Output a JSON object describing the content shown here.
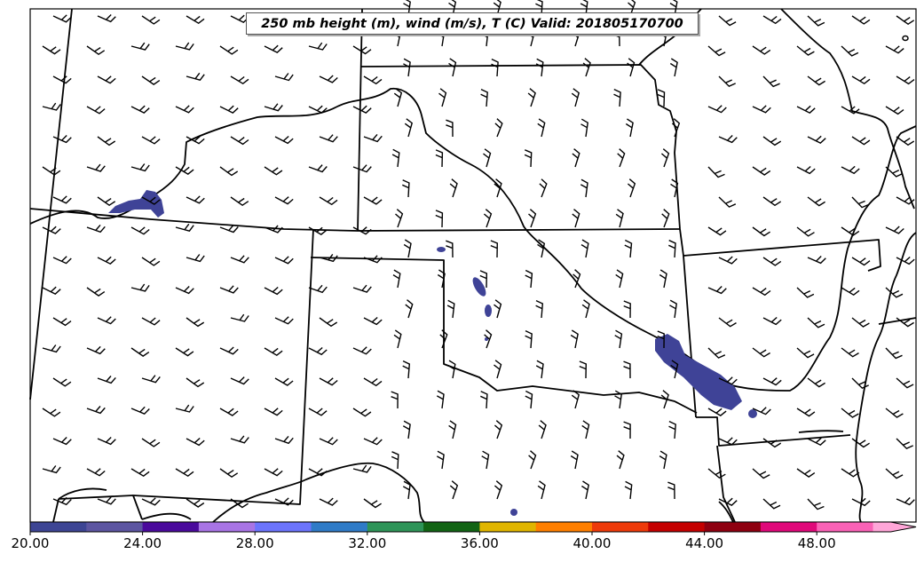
{
  "map": {
    "title": "250 mb height (m), wind (m/s), T (C) Valid: 201805170700",
    "background_color": "#ffffff",
    "line_color": "#000000",
    "shaded_field_color": "#3f4397"
  },
  "colorbar": {
    "colors": [
      "#3d4594",
      "#5c55a1",
      "#4a0a9c",
      "#a874e4",
      "#6c74fc",
      "#2f7bc7",
      "#2e9458",
      "#126414",
      "#e0b500",
      "#ff7f00",
      "#ee3a0a",
      "#c40000",
      "#8e0010",
      "#e0097a",
      "#fa62b6",
      "#ffa6d8"
    ],
    "tick_labels": [
      "20.00",
      "24.00",
      "28.00",
      "32.00",
      "36.00",
      "40.00",
      "44.00",
      "48.00"
    ]
  }
}
